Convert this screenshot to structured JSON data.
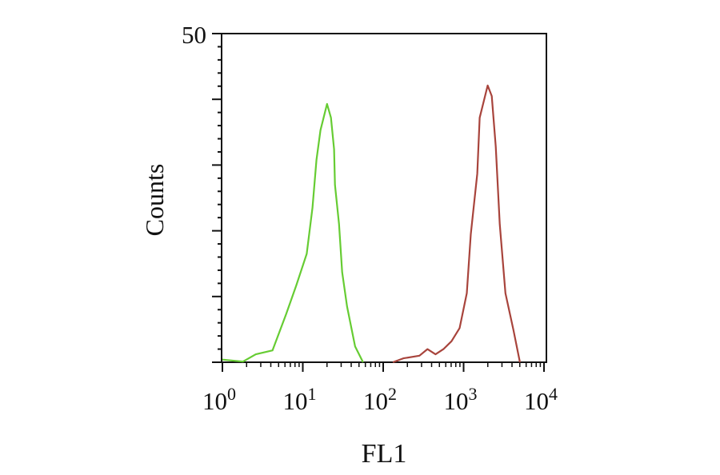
{
  "chart_data": {
    "type": "line",
    "title": "",
    "xlabel": "FL1",
    "ylabel": "Counts",
    "x_scale": "log",
    "xlim": [
      1,
      10000
    ],
    "ylim": [
      0,
      50
    ],
    "x_tick_labels": [
      {
        "base": "10",
        "exp": "0",
        "value": 1
      },
      {
        "base": "10",
        "exp": "1",
        "value": 10
      },
      {
        "base": "10",
        "exp": "2",
        "value": 100
      },
      {
        "base": "10",
        "exp": "3",
        "value": 1000
      },
      {
        "base": "10",
        "exp": "4",
        "value": 10000
      }
    ],
    "y_tick_labels": [
      {
        "label": "50",
        "value": 50
      }
    ],
    "y_ticks": [
      0,
      10,
      20,
      30,
      40,
      50
    ],
    "grid": false,
    "legend": "none",
    "series": [
      {
        "color": "#66cc33",
        "x": [
          1,
          1.8,
          2.6,
          4.2,
          6.2,
          8.3,
          11.2,
          13.2,
          14.8,
          16.6,
          20,
          22.4,
          24.5,
          25.1,
          28.2,
          30.9,
          35.5,
          44.7,
          56.2
        ],
        "y": [
          0.4,
          0.1,
          1.2,
          1.8,
          7.3,
          11.7,
          16.5,
          23.5,
          30.8,
          35.3,
          39.3,
          37.2,
          32.4,
          27,
          21,
          13.7,
          8.5,
          2.4,
          0
        ]
      },
      {
        "color": "#a8443c",
        "x": [
          132,
          178,
          282,
          355,
          447,
          562,
          708,
          891,
          1096,
          1230,
          1479,
          1585,
          1995,
          2239,
          2512,
          2818,
          3311,
          4169,
          5012
        ],
        "y": [
          0,
          0.6,
          1,
          2,
          1.2,
          2,
          3.2,
          5.2,
          10.5,
          19.5,
          28.7,
          37.2,
          42.1,
          40.5,
          32.8,
          21,
          10.5,
          4.9,
          0
        ]
      }
    ]
  }
}
